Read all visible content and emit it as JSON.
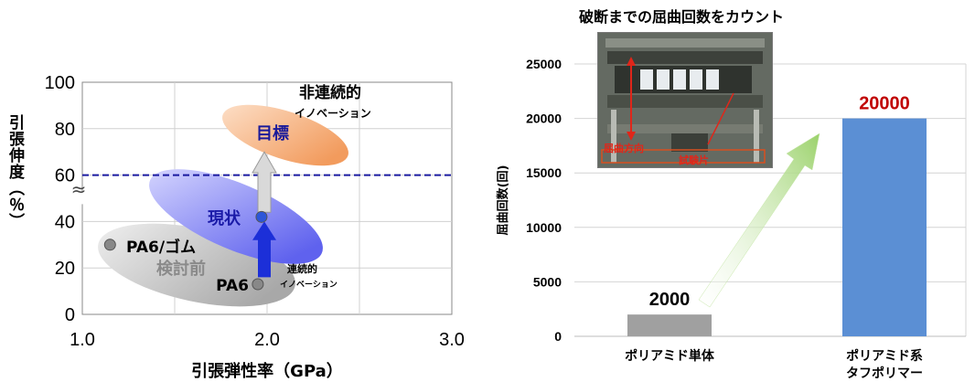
{
  "left_chart": {
    "ylabel": "引張伸度（％）",
    "xlabel": "引張弾性率（GPa）",
    "threshold_y": 60,
    "annotations": {
      "nonlinear_title": "非連続的",
      "nonlinear_sub": "イノベーション",
      "linear_title": "連続的",
      "linear_sub": "イノベーション",
      "break_mark": "≈"
    },
    "regions": [
      {
        "label": "目標",
        "color": "#f3a26a"
      },
      {
        "label": "現状",
        "color": "#6a6df0"
      },
      {
        "label": "検討前",
        "color": "#bdbdbd"
      }
    ],
    "points": [
      {
        "label": "PA6/ゴム",
        "x": 1.15,
        "y": 30
      },
      {
        "label": "PA6",
        "x": 1.95,
        "y": 13
      },
      {
        "label": "",
        "x": 1.97,
        "y": 42
      }
    ]
  },
  "chart_data": [
    {
      "type": "scatter",
      "xlabel": "引張弾性率（GPa）",
      "ylabel": "引張伸度（％）",
      "xlim": [
        1.0,
        3.0
      ],
      "ylim": [
        0,
        100
      ],
      "x_ticks": [
        "1.0",
        "2.0",
        "3.0"
      ],
      "y_ticks": [
        "0",
        "20",
        "40",
        "60",
        "80",
        "100"
      ],
      "grid": true,
      "points": [
        {
          "label": "PA6/ゴム",
          "x": 1.15,
          "y": 30
        },
        {
          "label": "PA6",
          "x": 1.95,
          "y": 13
        },
        {
          "label": "現状",
          "x": 1.97,
          "y": 42
        }
      ]
    },
    {
      "type": "bar",
      "title": "破断までの屈曲回数をカウント",
      "ylabel": "屈曲回数(回)",
      "categories": [
        "ポリアミド単体",
        "ポリアミド系\nタフポリマー"
      ],
      "category_lines": [
        [
          "ポリアミド単体"
        ],
        [
          "ポリアミド系",
          "タフポリマー"
        ]
      ],
      "values": [
        2000,
        20000
      ],
      "value_labels": [
        "2000",
        "20000"
      ],
      "value_label_colors": [
        "#000000",
        "#c00000"
      ],
      "bar_colors": [
        "#a0a0a0",
        "#5b8fd4"
      ],
      "ylim": [
        0,
        25000
      ],
      "y_ticks": [
        "0",
        "5000",
        "10000",
        "15000",
        "20000",
        "25000"
      ],
      "grid": true
    }
  ],
  "photo": {
    "label_direction": "屈曲方向",
    "label_specimen": "試験片"
  },
  "colors": {
    "dashed_line": "#1a1aa0",
    "arrow_blue": "#1c2fd8",
    "arrow_gray": "#d9d9d9",
    "arrow_green": "#9bd26b",
    "label_red": "#c00000"
  }
}
